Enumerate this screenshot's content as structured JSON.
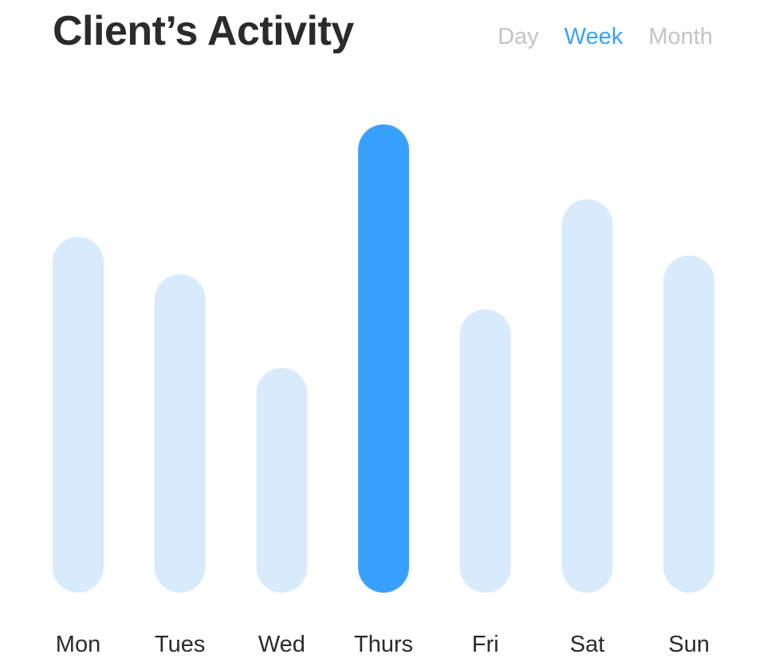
{
  "header": {
    "title": "Client’s Activity",
    "tabs": [
      {
        "label": "Day",
        "active": false
      },
      {
        "label": "Week",
        "active": true
      },
      {
        "label": "Month",
        "active": false
      }
    ]
  },
  "colors": {
    "bar_default": "#d8ebfd",
    "bar_highlight": "#38a1fd",
    "tab_active": "#3aa2fb",
    "tab_inactive": "#c4c4c4",
    "text": "#2b2b2b"
  },
  "chart_data": {
    "type": "bar",
    "title": "Client’s Activity",
    "categories": [
      "Mon",
      "Tues",
      "Wed",
      "Thurs",
      "Fri",
      "Sat",
      "Sun"
    ],
    "values": [
      0.76,
      0.68,
      0.48,
      1.0,
      0.605,
      0.84,
      0.72
    ],
    "highlight_index": 3,
    "ylim": [
      0,
      1
    ],
    "grid": false,
    "axes_visible": false
  }
}
